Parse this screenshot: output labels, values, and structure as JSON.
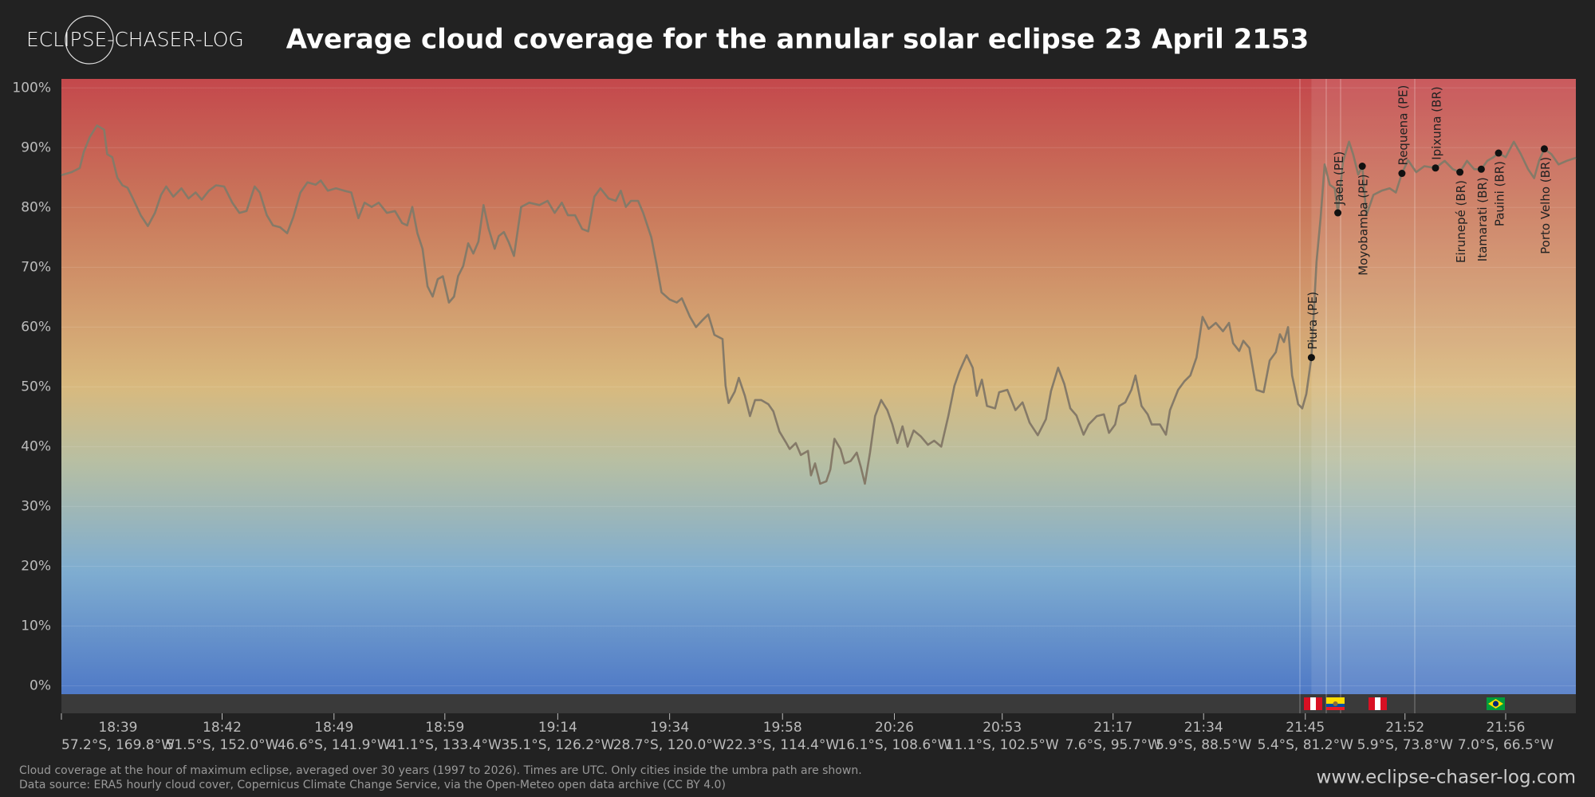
{
  "brand": "ECLIPSE-CHASER-LOG",
  "website": "www.eclipse-chaser-log.com",
  "notes": [
    "Cloud coverage at the hour of maximum eclipse, averaged over 30 years (1997 to 2026). Times are UTC. Only cities inside the umbra path are shown.",
    "Data source: ERA5 hourly cloud cover, Copernicus Climate Change Service, via the Open-Meteo open data archive (CC BY 4.0)"
  ],
  "chart_data": {
    "type": "line",
    "title": "Average cloud coverage for the annular solar eclipse 23 April 2153",
    "xlim": [
      0,
      1489
    ],
    "ylim": [
      -1.4,
      101.5
    ],
    "grid": true,
    "yticks": [
      {
        "value": 0,
        "label": "0%"
      },
      {
        "value": 10,
        "label": "10%"
      },
      {
        "value": 20,
        "label": "20%"
      },
      {
        "value": 30,
        "label": "30%"
      },
      {
        "value": 40,
        "label": "40%"
      },
      {
        "value": 50,
        "label": "50%"
      },
      {
        "value": 60,
        "label": "60%"
      },
      {
        "value": 70,
        "label": "70%"
      },
      {
        "value": 80,
        "label": "80%"
      },
      {
        "value": 90,
        "label": "90%"
      },
      {
        "value": 100,
        "label": "100%"
      }
    ],
    "xticks": [
      {
        "value": 0,
        "label": "18:39"
      },
      {
        "value": 158,
        "label": "18:42"
      },
      {
        "value": 268,
        "label": "18:49"
      },
      {
        "value": 377,
        "label": "18:59"
      },
      {
        "value": 488,
        "label": "19:14"
      },
      {
        "value": 598,
        "label": "19:34"
      },
      {
        "value": 709,
        "label": "19:58"
      },
      {
        "value": 819,
        "label": "20:26"
      },
      {
        "value": 925,
        "label": "20:53"
      },
      {
        "value": 1034,
        "label": "21:17"
      },
      {
        "value": 1123,
        "label": "21:34"
      },
      {
        "value": 1223,
        "label": "21:45"
      },
      {
        "value": 1321,
        "label": "21:52"
      },
      {
        "value": 1420,
        "label": "21:56"
      }
    ],
    "xtick_sublabels": [
      "57.2°S, 169.8°W",
      "51.5°S, 152.0°W",
      "46.6°S, 141.9°W",
      "41.1°S, 133.4°W",
      "35.1°S, 126.2°W",
      "28.7°S, 120.0°W",
      "22.3°S, 114.4°W",
      "16.1°S, 108.6°W",
      "11.1°S, 102.5°W",
      "7.6°S, 95.7°W",
      "5.9°S, 88.5°W",
      "5.4°S, 81.2°W",
      "5.9°S, 73.8°W",
      "7.0°S, 66.5°W"
    ],
    "series": [
      {
        "color": "#857a68",
        "x": [
          0,
          10,
          18,
          22,
          28,
          35,
          42,
          45,
          50,
          55,
          60,
          65,
          70,
          78,
          85,
          92,
          98,
          103,
          110,
          118,
          125,
          132,
          138,
          145,
          152,
          160,
          168,
          175,
          182,
          190,
          195,
          202,
          208,
          215,
          222,
          228,
          235,
          242,
          250,
          255,
          262,
          270,
          278,
          285,
          292,
          298,
          305,
          312,
          320,
          328,
          335,
          340,
          345,
          350,
          355,
          360,
          365,
          370,
          375,
          381,
          386,
          390,
          395,
          400,
          405,
          410,
          415,
          420,
          426,
          430,
          435,
          440,
          445,
          452,
          460,
          470,
          478,
          485,
          492,
          498,
          505,
          512,
          518,
          524,
          530,
          538,
          545,
          550,
          555,
          560,
          567,
          572,
          580,
          585,
          590,
          598,
          605,
          610,
          618,
          624,
          630,
          636,
          642,
          650,
          653,
          656,
          662,
          666,
          672,
          677,
          682,
          688,
          695,
          700,
          706,
          712,
          716,
          722,
          727,
          734,
          737,
          741,
          746,
          752,
          756,
          760,
          766,
          770,
          776,
          782,
          786,
          790,
          795,
          800,
          806,
          812,
          817,
          822,
          827,
          832,
          838,
          845,
          852,
          858,
          865,
          872,
          878,
          883,
          890,
          896,
          900,
          905,
          910,
          918,
          922,
          930,
          938,
          945,
          952,
          960,
          968,
          973,
          980,
          986,
          992,
          998,
          1005,
          1010,
          1018,
          1025,
          1030,
          1036,
          1040,
          1046,
          1052,
          1056,
          1062,
          1068,
          1072,
          1080,
          1086,
          1090,
          1098,
          1104,
          1110,
          1116,
          1122,
          1128,
          1135,
          1142,
          1148,
          1152,
          1158,
          1162,
          1168,
          1175,
          1182,
          1188,
          1194,
          1198,
          1202,
          1206,
          1210,
          1216,
          1220,
          1224,
          1229,
          1234,
          1238,
          1242,
          1247,
          1252,
          1255,
          1260,
          1266,
          1270,
          1275,
          1279,
          1283,
          1290,
          1298,
          1306,
          1312,
          1318,
          1324,
          1332,
          1340,
          1351,
          1360,
          1368,
          1375,
          1382,
          1389,
          1396,
          1402,
          1408,
          1413,
          1420,
          1428,
          1435,
          1442,
          1448,
          1453,
          1458,
          1465,
          1472,
          1480,
          1489
        ],
        "values": [
          85.4,
          85.9,
          86.6,
          89.3,
          91.8,
          93.7,
          93.0,
          88.9,
          88.4,
          85.0,
          83.7,
          83.3,
          81.6,
          78.7,
          76.9,
          79.1,
          82.1,
          83.5,
          81.8,
          83.2,
          81.5,
          82.5,
          81.3,
          82.8,
          83.7,
          83.5,
          80.8,
          79.1,
          79.4,
          83.5,
          82.5,
          78.7,
          77.0,
          76.7,
          75.7,
          78.4,
          82.5,
          84.2,
          83.8,
          84.5,
          82.8,
          83.2,
          82.8,
          82.5,
          78.2,
          80.8,
          80.1,
          80.8,
          79.1,
          79.4,
          77.4,
          77.0,
          80.1,
          75.7,
          73.1,
          66.8,
          65.1,
          68.0,
          68.5,
          64.1,
          65.1,
          68.5,
          70.2,
          74.0,
          72.3,
          74.3,
          80.4,
          76.5,
          73.1,
          75.2,
          75.9,
          74.1,
          71.9,
          80.1,
          80.8,
          80.4,
          81.1,
          79.1,
          80.8,
          78.7,
          78.7,
          76.4,
          76.0,
          81.8,
          83.2,
          81.5,
          81.1,
          82.8,
          80.1,
          81.1,
          81.1,
          79.1,
          75.0,
          70.6,
          65.8,
          64.6,
          64.1,
          64.8,
          61.7,
          60.0,
          61.1,
          62.1,
          58.7,
          58.0,
          50.2,
          47.3,
          49.2,
          51.5,
          48.5,
          45.1,
          47.8,
          47.8,
          47.1,
          45.9,
          42.5,
          40.8,
          39.6,
          40.6,
          38.6,
          39.3,
          35.2,
          37.2,
          33.8,
          34.2,
          36.2,
          41.3,
          39.6,
          37.2,
          37.6,
          39.0,
          36.6,
          33.8,
          39.0,
          45.1,
          47.8,
          46.1,
          43.7,
          40.6,
          43.4,
          40.0,
          42.7,
          41.7,
          40.3,
          41.0,
          40.0,
          45.1,
          50.2,
          52.6,
          55.3,
          53.2,
          48.5,
          51.2,
          46.8,
          46.4,
          49.1,
          49.5,
          46.1,
          47.4,
          44.0,
          41.9,
          44.6,
          49.3,
          53.2,
          50.5,
          46.4,
          45.2,
          42.0,
          43.7,
          45.1,
          45.4,
          42.3,
          43.7,
          46.8,
          47.4,
          49.5,
          51.9,
          46.8,
          45.4,
          43.7,
          43.7,
          42.0,
          46.1,
          49.5,
          50.9,
          51.9,
          54.9,
          61.7,
          59.7,
          60.7,
          59.3,
          60.7,
          57.3,
          56.0,
          57.7,
          56.5,
          49.5,
          49.1,
          54.4,
          55.8,
          58.8,
          57.5,
          60.0,
          51.9,
          47.1,
          46.4,
          48.8,
          54.9,
          70.9,
          78.2,
          87.2,
          83.8,
          83.2,
          79.1,
          87.6,
          91.0,
          88.9,
          85.5,
          86.9,
          78.7,
          82.1,
          82.8,
          83.2,
          82.5,
          85.7,
          87.9,
          85.9,
          86.9,
          86.6,
          87.8,
          86.4,
          85.9,
          87.8,
          86.4,
          86.4,
          87.8,
          88.4,
          89.1,
          88.4,
          91.0,
          88.9,
          86.4,
          84.9,
          87.9,
          89.8,
          88.9,
          87.2,
          87.8,
          88.3
        ]
      }
    ],
    "cities": [
      {
        "name": "Piura (PE)",
        "x": 1229,
        "value": 54.9,
        "label_position": "above"
      },
      {
        "name": "Jaen (PE)",
        "x": 1255,
        "value": 79.1,
        "label_position": "above"
      },
      {
        "name": "Moyobamba (PE)",
        "x": 1279,
        "value": 86.9,
        "label_position": "below"
      },
      {
        "name": "Requena (PE)",
        "x": 1318,
        "value": 85.7,
        "label_position": "above"
      },
      {
        "name": "Ipixuna (BR)",
        "x": 1351,
        "value": 86.6,
        "label_position": "above"
      },
      {
        "name": "Eirunepé (BR)",
        "x": 1375,
        "value": 85.9,
        "label_position": "below"
      },
      {
        "name": "Itamarati (BR)",
        "x": 1396,
        "value": 86.4,
        "label_position": "below"
      },
      {
        "name": "Pauini (BR)",
        "x": 1413,
        "value": 89.1,
        "label_position": "below"
      },
      {
        "name": "Porto Velho (BR)",
        "x": 1458,
        "value": 89.8,
        "label_position": "below"
      }
    ]
  }
}
